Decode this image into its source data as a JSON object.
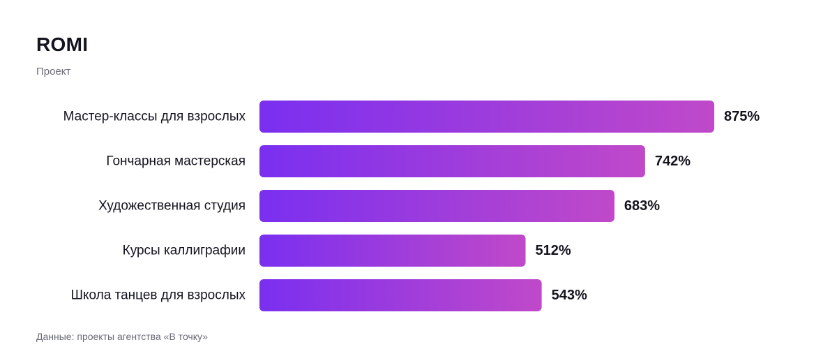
{
  "chart_data": {
    "type": "bar",
    "orientation": "horizontal",
    "title": "ROMI",
    "subtitle": "Проект",
    "categories": [
      "Мастер-классы для взрослых",
      "Гончарная мастерская",
      "Художественная студия",
      "Курсы каллиграфии",
      "Школа танцев для взрослых"
    ],
    "values": [
      875,
      742,
      683,
      512,
      543
    ],
    "value_labels": [
      "875%",
      "742%",
      "683%",
      "512%",
      "543%"
    ],
    "unit": "%",
    "xlim": [
      0,
      875
    ],
    "grid": false,
    "legend": "none",
    "colors": {
      "bar_gradient_start": "#7a2ff0",
      "bar_gradient_end": "#c049c9",
      "text": "#14141f",
      "muted_text": "#6b6b78"
    }
  },
  "source": "Данные: проекты агентства «В точку»"
}
